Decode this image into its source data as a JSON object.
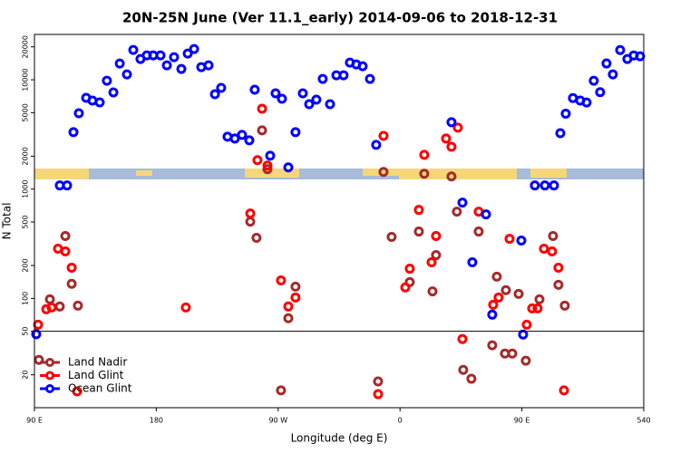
{
  "chart_data": {
    "type": "scatter",
    "title": "20N-25N June (Ver 11.1_early)   2014-09-06 to 2018-12-31",
    "x_label": "Longitude (deg E)",
    "y_label": "N Total",
    "xlim": [
      90,
      540
    ],
    "xticks": [
      {
        "value": 90,
        "label": "90 E"
      },
      180,
      {
        "value": 270,
        "label": "90 W"
      },
      {
        "value": 360,
        "label": "0"
      },
      {
        "value": 450,
        "label": "90 E"
      },
      540
    ],
    "ylim": [
      10,
      26000
    ],
    "y_scale": "log",
    "yticks": [
      20,
      50,
      100,
      200,
      500,
      1000,
      2000,
      5000,
      10000,
      20000
    ],
    "hline": 50,
    "legend": "lower left",
    "series": [
      {
        "name": "Land Nadir",
        "color": "#a52a2a",
        "x": [
          93.3,
          101.4,
          108.7,
          112.8,
          117.5,
          122.1,
          249.4,
          254,
          272.1,
          277.5,
          282.8,
          258.1,
          262.1,
          347.8,
          377.9,
          398,
          353.8,
          367.2,
          373.9,
          384,
          386.6,
          402,
          418.1,
          431.5,
          438.2,
          428.1,
          406.7,
          412.7,
          437.5,
          442.9,
          452.9,
          447.6,
          463,
          473,
          477,
          481.7,
          343.8
        ],
        "values": [
          27.4,
          98.1,
          84.3,
          372,
          136,
          85.9,
          504,
          358,
          14.4,
          65.8,
          128,
          3446,
          1520,
          1436,
          1381,
          1306,
          365,
          141,
          409,
          116,
          249,
          622,
          409,
          158,
          119,
          37.2,
          22.2,
          18.4,
          31.3,
          31.3,
          26.9,
          110,
          98.1,
          372,
          133,
          85.9,
          17.4
        ]
      },
      {
        "name": "Land Glint",
        "color": "#ff0000",
        "x": [
          92.7,
          98.7,
          102.7,
          107.4,
          112.8,
          117.5,
          121.5,
          201.8,
          249.4,
          272.1,
          277.5,
          282.8,
          258.1,
          254.7,
          262.1,
          347.8,
          377.9,
          394,
          398,
          402.7,
          363.9,
          367.2,
          373.9,
          383.3,
          386.6,
          406.1,
          418.1,
          428.8,
          432.8,
          440.9,
          453.6,
          457.6,
          461.6,
          466.3,
          472.3,
          477,
          481.1,
          343.8
        ],
        "values": [
          57.5,
          79.6,
          82.6,
          285,
          269,
          191,
          14.1,
          82.6,
          598,
          146,
          84.3,
          102,
          5440,
          1840,
          1640,
          3070,
          2060,
          2900,
          2440,
          3650,
          126,
          187,
          645,
          214,
          372,
          42.5,
          622,
          87.5,
          102,
          351,
          57.5,
          81.1,
          81.1,
          285,
          269,
          191,
          14.4,
          13.3
        ]
      },
      {
        "name": "Ocean Glint",
        "color": "#0000ff",
        "x": [
          118.8,
          122.8,
          128.2,
          132.8,
          138.2,
          143.5,
          148.3,
          153,
          158.3,
          163,
          168.3,
          173,
          177.7,
          183.1,
          187.8,
          193.1,
          198.5,
          203.2,
          207.9,
          213.2,
          218.6,
          223.3,
          227.9,
          232.6,
          238,
          243.3,
          248.7,
          252.7,
          264.1,
          268.1,
          272.8,
          277.5,
          282.8,
          288.2,
          292.9,
          298.2,
          302.9,
          308.3,
          313,
          318.3,
          323,
          327.7,
          332.4,
          337.8,
          342.4,
          398,
          406.1,
          413.4,
          423.5,
          428.1,
          450.9,
          459.6,
          467,
          473.7,
          478.4,
          482.4,
          487.7,
          493.1,
          497.8,
          503.1,
          507.8,
          512.5,
          517.2,
          522.6,
          527.9,
          532.6,
          537.3,
          108.7,
          114.1,
          449.6,
          91.3
        ],
        "values": [
          3318,
          4945,
          6840,
          6450,
          6210,
          9810,
          7660,
          14090,
          11210,
          18740,
          15480,
          16710,
          16710,
          16710,
          13550,
          16100,
          12560,
          17370,
          19100,
          13060,
          13550,
          7380,
          8430,
          3015,
          2900,
          3130,
          2795,
          8110,
          2020,
          7520,
          6700,
          1580,
          3318,
          7520,
          5980,
          6580,
          10190,
          5980,
          11000,
          11000,
          14360,
          13810,
          13300,
          10190,
          2540,
          4090,
          752,
          214,
          587,
          71,
          46.7,
          1080,
          1080,
          1080,
          3250,
          4900,
          6800,
          6450,
          6200,
          9800,
          7700,
          14100,
          11200,
          18700,
          15500,
          16700,
          16400,
          1080,
          1080,
          338,
          47
        ]
      }
    ]
  }
}
